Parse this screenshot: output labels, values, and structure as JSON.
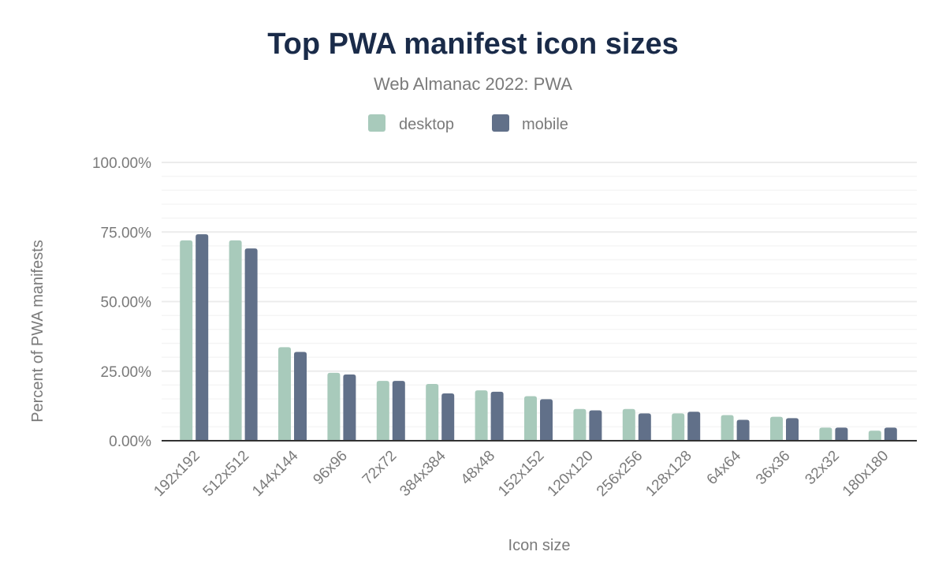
{
  "chart_data": {
    "type": "bar",
    "title": "Top PWA manifest icon sizes",
    "subtitle": "Web Almanac 2022: PWA",
    "xlabel": "Icon size",
    "ylabel": "Percent of PWA manifests",
    "ylim": [
      0,
      100
    ],
    "yticks": [
      "0.00%",
      "25.00%",
      "50.00%",
      "75.00%",
      "100.00%"
    ],
    "grid": true,
    "legend_position": "top",
    "categories": [
      "192x192",
      "512x512",
      "144x144",
      "96x96",
      "72x72",
      "384x384",
      "48x48",
      "152x152",
      "120x120",
      "256x256",
      "128x128",
      "64x64",
      "36x36",
      "32x32",
      "180x180"
    ],
    "series": [
      {
        "name": "desktop",
        "color": "#a8cabb",
        "values": [
          72.0,
          72.0,
          33.6,
          24.4,
          21.5,
          20.4,
          18.1,
          16.0,
          11.4,
          11.4,
          9.8,
          9.2,
          8.6,
          4.7,
          3.6
        ]
      },
      {
        "name": "mobile",
        "color": "#617089",
        "values": [
          74.2,
          69.1,
          31.9,
          23.8,
          21.5,
          17.0,
          17.6,
          14.9,
          10.9,
          9.8,
          10.4,
          7.5,
          8.1,
          4.7,
          4.7
        ]
      }
    ]
  }
}
